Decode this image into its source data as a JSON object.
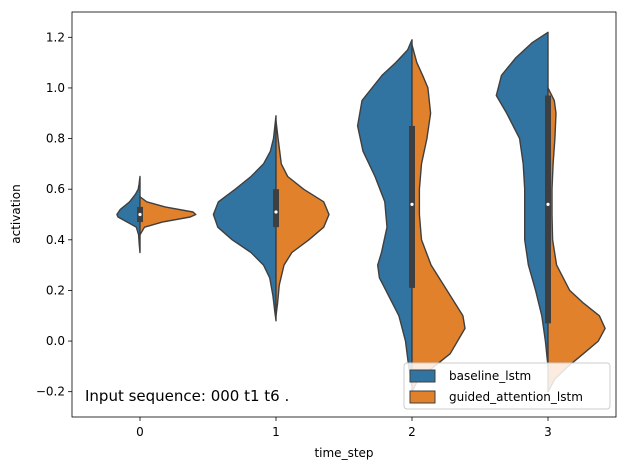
{
  "chart_data": {
    "type": "violin",
    "split": true,
    "xlabel": "time_step",
    "ylabel": "activation",
    "categories": [
      "0",
      "1",
      "2",
      "3"
    ],
    "ylim": [
      -0.3,
      1.3
    ],
    "yticks": [
      "−0.2",
      "0.0",
      "0.2",
      "0.4",
      "0.6",
      "0.8",
      "1.0",
      "1.2"
    ],
    "annotation": "Input sequence: 000 t1 t6 .",
    "legend": {
      "position": "bottom-right"
    },
    "series": [
      {
        "name": "baseline_lstm",
        "color": "#3274a1",
        "violins": [
          {
            "min": 0.35,
            "max": 0.65,
            "width": 0.17,
            "profile": [
              [
                0.35,
                0
              ],
              [
                0.38,
                0.03
              ],
              [
                0.42,
                0.06
              ],
              [
                0.45,
                0.16
              ],
              [
                0.47,
                0.55
              ],
              [
                0.49,
                0.95
              ],
              [
                0.5,
                1.0
              ],
              [
                0.52,
                0.85
              ],
              [
                0.55,
                0.45
              ],
              [
                0.58,
                0.2
              ],
              [
                0.6,
                0.08
              ],
              [
                0.62,
                0.04
              ],
              [
                0.65,
                0
              ]
            ]
          },
          {
            "min": 0.08,
            "max": 0.89,
            "width": 0.46,
            "profile": [
              [
                0.08,
                0
              ],
              [
                0.12,
                0.02
              ],
              [
                0.18,
                0.05
              ],
              [
                0.25,
                0.1
              ],
              [
                0.3,
                0.2
              ],
              [
                0.35,
                0.4
              ],
              [
                0.4,
                0.7
              ],
              [
                0.45,
                0.93
              ],
              [
                0.5,
                1.0
              ],
              [
                0.55,
                0.92
              ],
              [
                0.6,
                0.65
              ],
              [
                0.65,
                0.4
              ],
              [
                0.7,
                0.2
              ],
              [
                0.75,
                0.09
              ],
              [
                0.8,
                0.04
              ],
              [
                0.89,
                0
              ]
            ]
          },
          {
            "min": -0.18,
            "max": 1.19,
            "width": 0.4,
            "profile": [
              [
                -0.18,
                0
              ],
              [
                -0.1,
                0.06
              ],
              [
                0.0,
                0.12
              ],
              [
                0.1,
                0.24
              ],
              [
                0.2,
                0.48
              ],
              [
                0.25,
                0.6
              ],
              [
                0.3,
                0.63
              ],
              [
                0.35,
                0.56
              ],
              [
                0.45,
                0.46
              ],
              [
                0.55,
                0.5
              ],
              [
                0.65,
                0.68
              ],
              [
                0.75,
                0.9
              ],
              [
                0.85,
                1.0
              ],
              [
                0.95,
                0.92
              ],
              [
                1.05,
                0.55
              ],
              [
                1.1,
                0.3
              ],
              [
                1.15,
                0.08
              ],
              [
                1.19,
                0
              ]
            ]
          },
          {
            "min": -0.1,
            "max": 1.22,
            "width": 0.38,
            "profile": [
              [
                -0.1,
                0
              ],
              [
                0.0,
                0.05
              ],
              [
                0.1,
                0.12
              ],
              [
                0.2,
                0.24
              ],
              [
                0.3,
                0.38
              ],
              [
                0.4,
                0.45
              ],
              [
                0.5,
                0.45
              ],
              [
                0.6,
                0.45
              ],
              [
                0.7,
                0.48
              ],
              [
                0.8,
                0.55
              ],
              [
                0.9,
                0.8
              ],
              [
                0.97,
                1.0
              ],
              [
                1.05,
                0.9
              ],
              [
                1.12,
                0.62
              ],
              [
                1.18,
                0.3
              ],
              [
                1.22,
                0
              ]
            ]
          }
        ]
      },
      {
        "name": "guided_attention_lstm",
        "color": "#e1812c",
        "violins": [
          {
            "min": 0.42,
            "max": 0.57,
            "width": 0.41,
            "profile": [
              [
                0.42,
                0
              ],
              [
                0.45,
                0.08
              ],
              [
                0.47,
                0.4
              ],
              [
                0.49,
                0.9
              ],
              [
                0.5,
                1.0
              ],
              [
                0.51,
                0.95
              ],
              [
                0.53,
                0.45
              ],
              [
                0.55,
                0.12
              ],
              [
                0.57,
                0
              ]
            ]
          },
          {
            "min": 0.1,
            "max": 0.87,
            "width": 0.39,
            "profile": [
              [
                0.1,
                0
              ],
              [
                0.15,
                0.03
              ],
              [
                0.22,
                0.06
              ],
              [
                0.3,
                0.15
              ],
              [
                0.35,
                0.3
              ],
              [
                0.4,
                0.62
              ],
              [
                0.45,
                0.9
              ],
              [
                0.5,
                1.0
              ],
              [
                0.55,
                0.9
              ],
              [
                0.6,
                0.52
              ],
              [
                0.65,
                0.22
              ],
              [
                0.7,
                0.1
              ],
              [
                0.8,
                0.04
              ],
              [
                0.87,
                0
              ]
            ]
          },
          {
            "min": -0.2,
            "max": 1.17,
            "width": 0.39,
            "profile": [
              [
                -0.2,
                0
              ],
              [
                -0.15,
                0.12
              ],
              [
                -0.1,
                0.42
              ],
              [
                -0.05,
                0.72
              ],
              [
                0.05,
                1.0
              ],
              [
                0.1,
                0.96
              ],
              [
                0.2,
                0.66
              ],
              [
                0.3,
                0.36
              ],
              [
                0.4,
                0.18
              ],
              [
                0.5,
                0.14
              ],
              [
                0.6,
                0.14
              ],
              [
                0.7,
                0.18
              ],
              [
                0.8,
                0.28
              ],
              [
                0.9,
                0.35
              ],
              [
                1.0,
                0.3
              ],
              [
                1.05,
                0.2
              ],
              [
                1.1,
                0.09
              ],
              [
                1.17,
                0
              ]
            ]
          },
          {
            "min": -0.2,
            "max": 1.0,
            "width": 0.42,
            "profile": [
              [
                -0.2,
                0
              ],
              [
                -0.15,
                0.12
              ],
              [
                -0.1,
                0.35
              ],
              [
                -0.05,
                0.62
              ],
              [
                0.0,
                0.88
              ],
              [
                0.05,
                1.0
              ],
              [
                0.1,
                0.9
              ],
              [
                0.15,
                0.62
              ],
              [
                0.2,
                0.38
              ],
              [
                0.3,
                0.15
              ],
              [
                0.4,
                0.08
              ],
              [
                0.5,
                0.07
              ],
              [
                0.6,
                0.07
              ],
              [
                0.7,
                0.09
              ],
              [
                0.8,
                0.12
              ],
              [
                0.9,
                0.14
              ],
              [
                0.95,
                0.11
              ],
              [
                1.0,
                0
              ]
            ]
          }
        ]
      }
    ],
    "box": [
      {
        "q1": 0.47,
        "q3": 0.53,
        "median": 0.5
      },
      {
        "q1": 0.45,
        "q3": 0.6,
        "median": 0.51
      },
      {
        "q1": 0.21,
        "q3": 0.85,
        "median": 0.54
      },
      {
        "q1": 0.07,
        "q3": 0.97,
        "median": 0.54
      }
    ]
  }
}
